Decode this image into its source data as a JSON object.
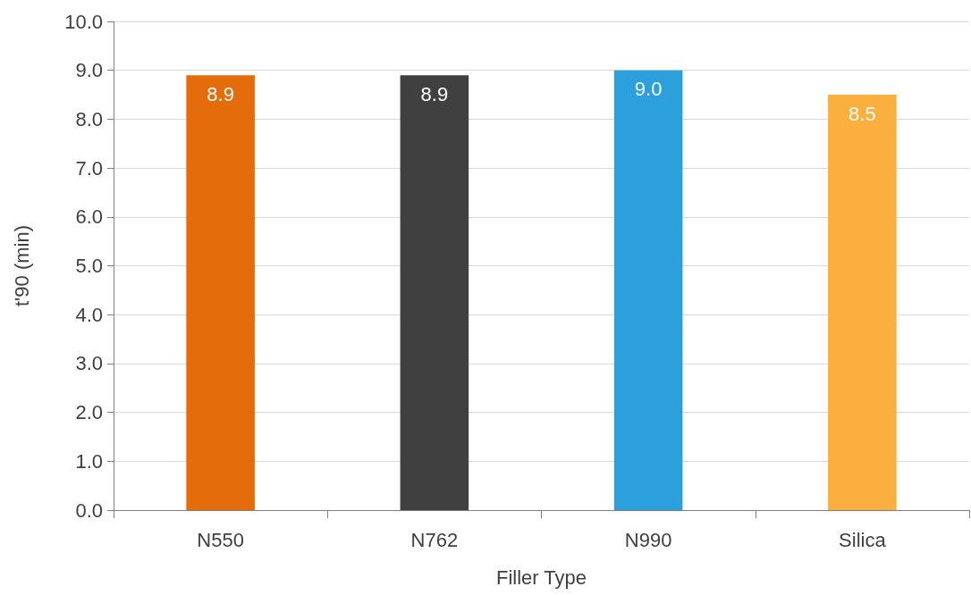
{
  "chart_data": {
    "type": "bar",
    "xlabel": "Filler Type",
    "ylabel": "t'90 (min)",
    "categories": [
      "N550",
      "N762",
      "N990",
      "Silica"
    ],
    "values": [
      8.9,
      8.9,
      9.0,
      8.5
    ],
    "value_labels": [
      "8.9",
      "8.9",
      "9.0",
      "8.5"
    ],
    "colors": [
      "#e46c0a",
      "#404040",
      "#2ca0dc",
      "#fbaf3f"
    ],
    "ylim": [
      0,
      10
    ],
    "yticks": [
      {
        "value": 0,
        "label": "0.0"
      },
      {
        "value": 1,
        "label": "1.0"
      },
      {
        "value": 2,
        "label": "2.0"
      },
      {
        "value": 3,
        "label": "3.0"
      },
      {
        "value": 4,
        "label": "4.0"
      },
      {
        "value": 5,
        "label": "5.0"
      },
      {
        "value": 6,
        "label": "6.0"
      },
      {
        "value": 7,
        "label": "7.0"
      },
      {
        "value": 8,
        "label": "8.0"
      },
      {
        "value": 9,
        "label": "9.0"
      },
      {
        "value": 10,
        "label": "10.0"
      }
    ],
    "grid": "y"
  }
}
